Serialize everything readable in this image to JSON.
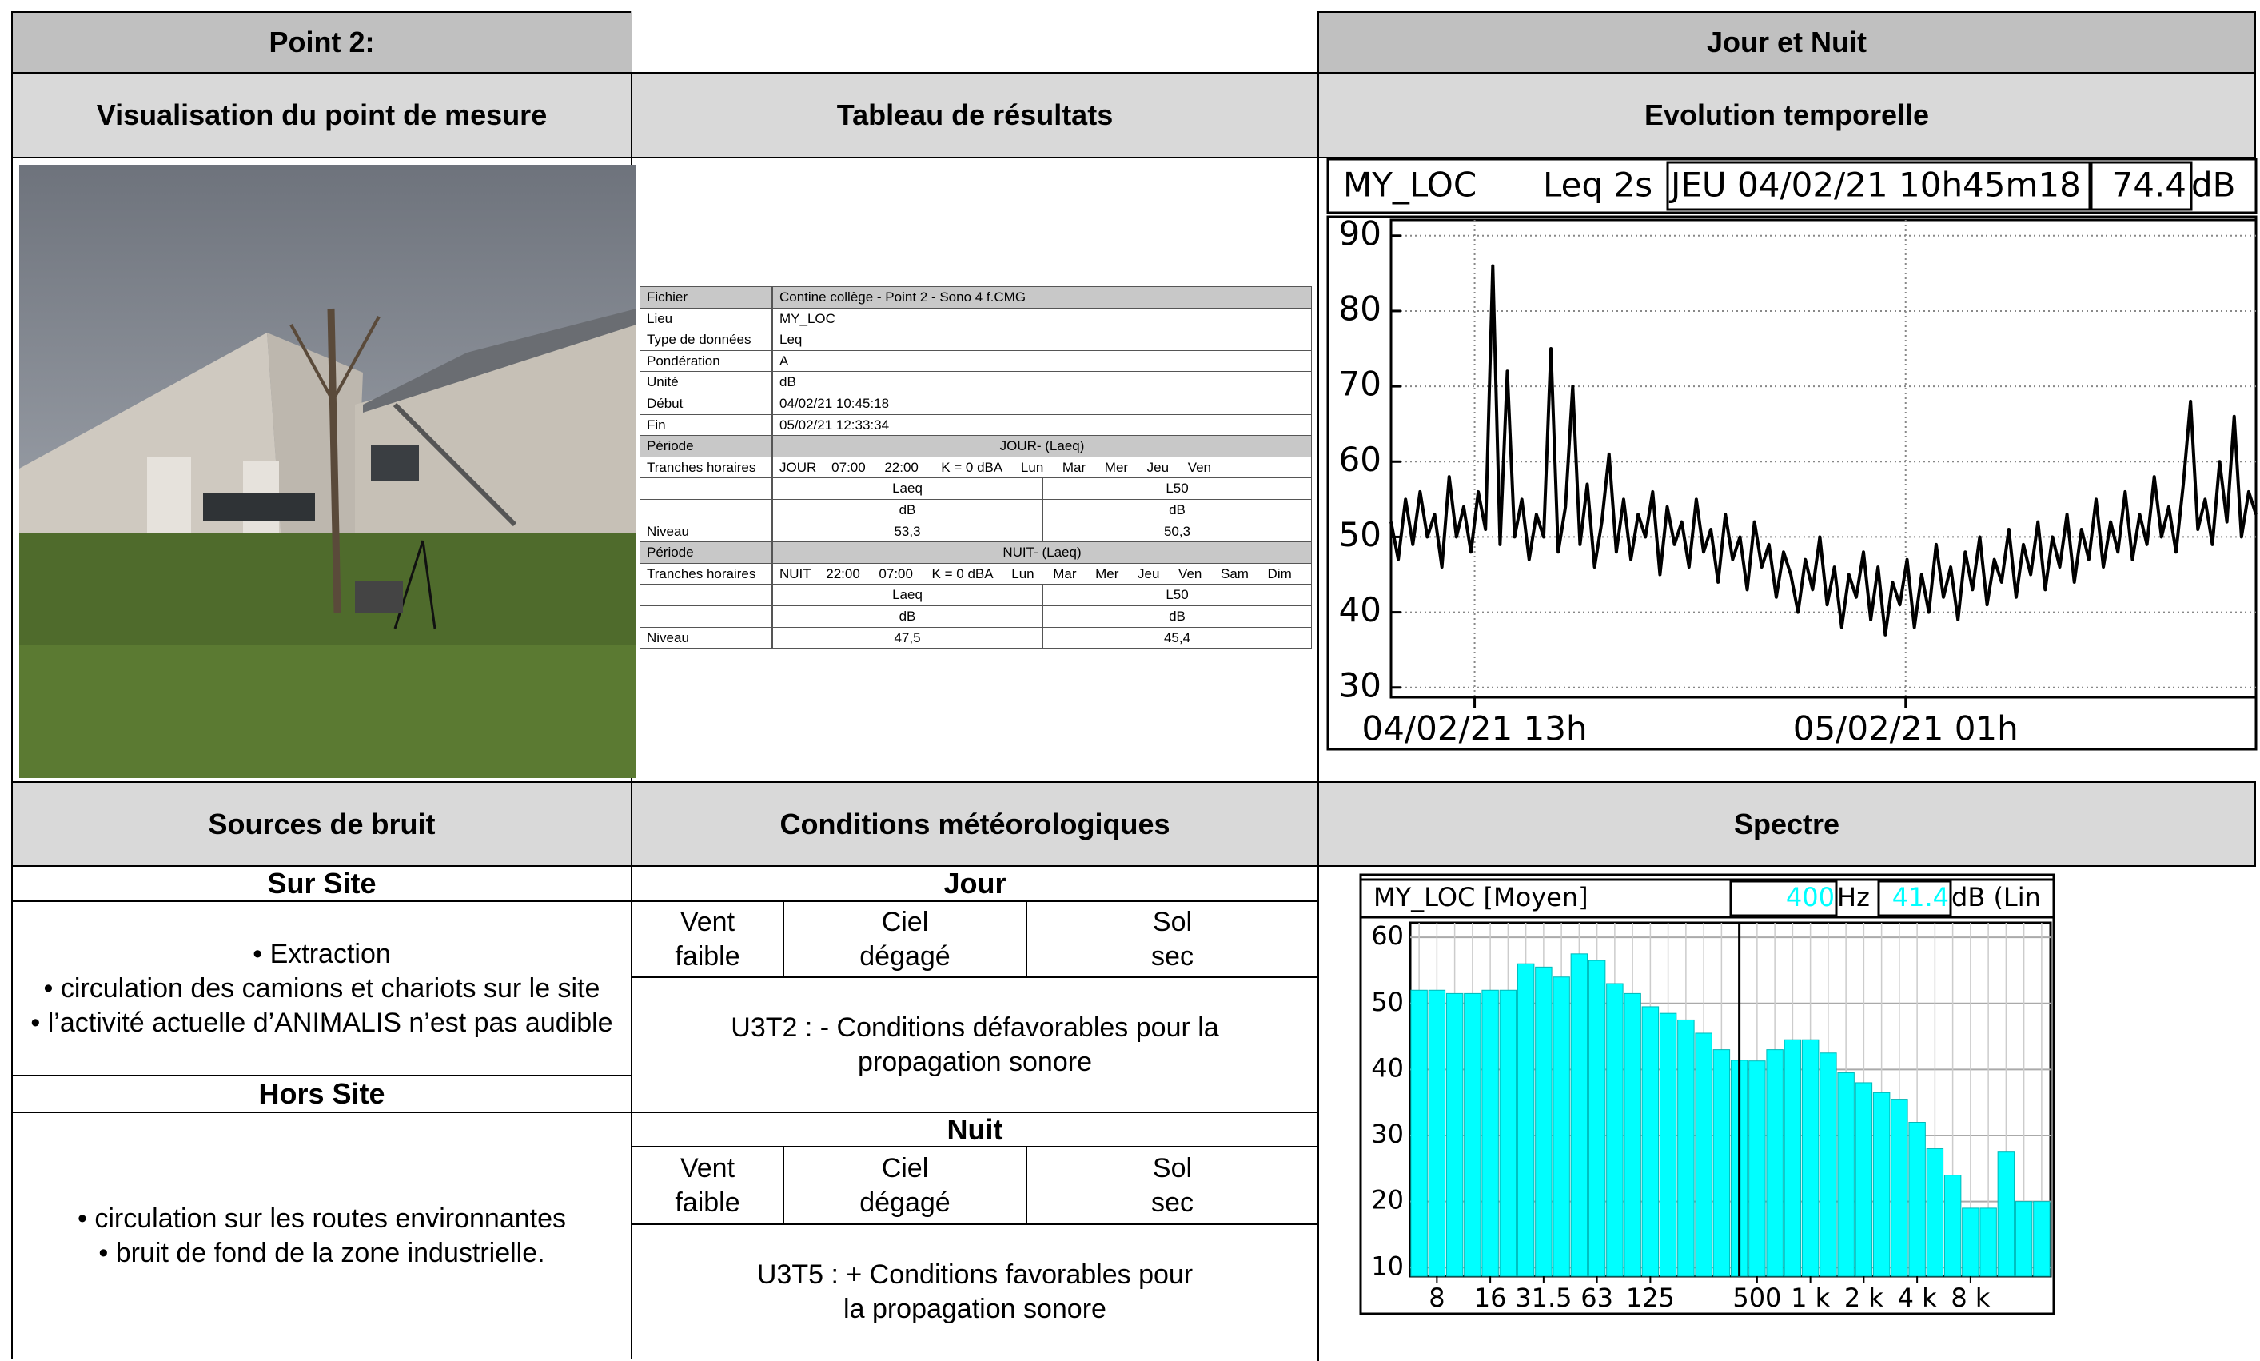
{
  "header": {
    "point": "Point 2:",
    "period": "Jour et Nuit"
  },
  "sections": {
    "photo": "Visualisation du point de mesure",
    "results": "Tableau de résultats",
    "evolution": "Evolution temporelle",
    "sources": "Sources de bruit",
    "meteo": "Conditions météorologiques",
    "spectrum": "Spectre"
  },
  "results_table": {
    "rows": [
      [
        "Fichier",
        "Contine collège - Point 2 - Sono 4 f.CMG"
      ],
      [
        "Lieu",
        "MY_LOC"
      ],
      [
        "Type de données",
        "Leq"
      ],
      [
        "Pondération",
        "A"
      ],
      [
        "Unité",
        "dB"
      ],
      [
        "Début",
        "04/02/21 10:45:18"
      ],
      [
        "Fin",
        "05/02/21 12:33:34"
      ],
      [
        "Période",
        "JOUR- (Laeq)"
      ],
      [
        "Tranches horaires",
        "JOUR    07:00     22:00      K = 0 dBA     Lun     Mar     Mer     Jeu     Ven"
      ],
      [
        null,
        "Laeq",
        "L50"
      ],
      [
        null,
        "dB",
        "dB"
      ],
      [
        "Niveau",
        "53,3",
        "50,3"
      ],
      [
        "Période",
        "NUIT- (Laeq)"
      ],
      [
        "Tranches horaires",
        "NUIT    22:00     07:00     K = 0 dBA     Lun     Mar     Mer     Jeu     Ven     Sam     Dim"
      ],
      [
        null,
        "Laeq",
        "L50"
      ],
      [
        null,
        "dB",
        "dB"
      ],
      [
        "Niveau",
        "47,5",
        "45,4"
      ]
    ]
  },
  "sources": {
    "on_site_title": "Sur Site",
    "on_site_items": [
      "• Extraction",
      "• circulation des camions et chariots sur le site",
      "• l’activité actuelle d’ANIMALIS n’est pas audible"
    ],
    "off_site_title": "Hors Site",
    "off_site_items": [
      "• circulation sur les routes environnantes",
      "• bruit de fond de la zone industrielle."
    ]
  },
  "meteo": {
    "day": {
      "title": "Jour",
      "cells": [
        "Vent faible",
        "Ciel dégagé",
        "Sol sec"
      ],
      "note": "U3T2 : - Conditions défavorables pour la propagation sonore"
    },
    "night": {
      "title": "Nuit",
      "cells": [
        "Vent faible",
        "Ciel dégagé",
        "Sol sec"
      ],
      "note": "U3T5 : + Conditions favorables pour la propagation sonore"
    }
  },
  "chart_data": [
    {
      "type": "line",
      "location": "MY_LOC",
      "index": "Leq 2s",
      "timestamp": "JEU 04/02/21 10h45m18",
      "cursor_value": 74.4,
      "unit": "dB",
      "color": "#000000",
      "values": [
        52,
        47,
        55,
        49,
        56,
        50,
        53,
        46,
        58,
        50,
        54,
        48,
        56,
        51,
        86,
        49,
        72,
        50,
        55,
        47,
        53,
        50,
        75,
        48,
        54,
        70,
        49,
        57,
        46,
        52,
        61,
        48,
        55,
        47,
        53,
        50,
        56,
        45,
        54,
        49,
        52,
        46,
        55,
        48,
        51,
        44,
        53,
        47,
        50,
        43,
        52,
        46,
        49,
        42,
        48,
        45,
        40,
        47,
        43,
        50,
        41,
        46,
        38,
        45,
        42,
        48,
        39,
        46,
        37,
        44,
        41,
        47,
        38,
        45,
        40,
        49,
        42,
        46,
        39,
        48,
        43,
        50,
        41,
        47,
        44,
        51,
        42,
        49,
        45,
        52,
        43,
        50,
        46,
        53,
        44,
        51,
        47,
        55,
        46,
        52,
        48,
        56,
        47,
        53,
        49,
        58,
        50,
        54,
        48,
        57,
        68,
        51,
        55,
        49,
        60,
        52,
        66,
        50,
        56,
        53
      ],
      "xlim": [
        0,
        119
      ],
      "xticks": [
        {
          "value": 11.5,
          "label": "04/02/21 13h"
        },
        {
          "value": 70.8,
          "label": "05/02/21 01h"
        }
      ],
      "ylim": [
        28.7,
        92.1
      ],
      "yticks": [
        30,
        40,
        50,
        60,
        70,
        80,
        90
      ],
      "grid": true
    },
    {
      "type": "bar",
      "location": "MY_LOC [Moyen]",
      "cursor_frequency": 400,
      "frequency_unit": "Hz",
      "cursor_value": 41.4,
      "value_unit": "dB (Lin",
      "color": "#00ffff",
      "categories": [
        null,
        "8",
        null,
        null,
        "16",
        null,
        null,
        "31.5",
        null,
        null,
        "63",
        null,
        null,
        "125",
        null,
        null,
        null,
        null,
        null,
        "500",
        null,
        null,
        "1 k",
        null,
        null,
        "2 k",
        null,
        null,
        "4 k",
        null,
        null,
        "8 k",
        null,
        null,
        null,
        null
      ],
      "values": [
        52,
        52,
        51.5,
        51.5,
        52,
        52,
        56,
        55.5,
        54,
        57.5,
        56.5,
        53,
        51.5,
        49.5,
        48.5,
        47.5,
        45.5,
        43,
        41.4,
        41.3,
        43,
        44.5,
        44.5,
        42.5,
        39.5,
        38,
        36.5,
        35.5,
        32,
        28,
        24,
        19,
        19,
        27.5,
        20,
        20
      ],
      "ylim": [
        8.7,
        62.2
      ],
      "yticks": [
        10,
        20,
        30,
        40,
        50,
        60
      ],
      "grid": true
    }
  ]
}
